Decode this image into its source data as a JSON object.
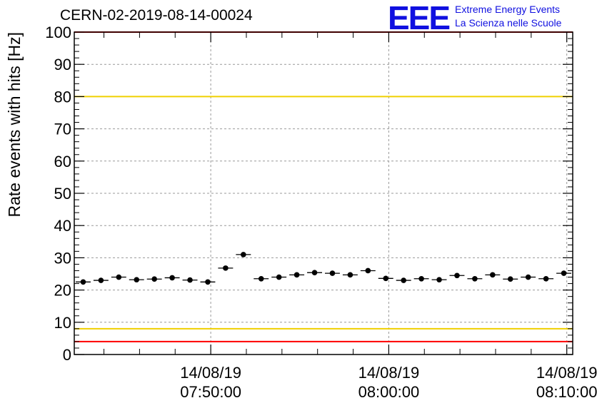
{
  "title": "CERN-02-2019-08-14-00024",
  "logo": {
    "mark": "EEE",
    "line1": "Extreme Energy Events",
    "line2": "La Scienza nelle Scuole",
    "color": "#1010e0"
  },
  "colors": {
    "red_line": "#ff0000",
    "yellow_line": "#f0d000",
    "marker": "#000000",
    "grid": "#999999"
  },
  "chart_data": {
    "type": "scatter",
    "ylabel": "Rate events with hits [Hz]",
    "xlabel": "",
    "ylim": [
      0,
      100
    ],
    "xlim": [
      "07:42:20",
      "08:10:20"
    ],
    "grid": true,
    "y_ticks": [
      0,
      10,
      20,
      30,
      40,
      50,
      60,
      70,
      80,
      90,
      100
    ],
    "x_ticks": [
      {
        "time": "07:50:00",
        "date": "14/08/19",
        "time_label": "07:50:00"
      },
      {
        "time": "08:00:00",
        "date": "14/08/19",
        "time_label": "08:00:00"
      },
      {
        "time": "08:10:00",
        "date": "14/08/19",
        "time_label": "08:10:00"
      }
    ],
    "bin_width_s": 60,
    "series": [
      {
        "x": [
          "07:42:50",
          "07:43:50",
          "07:44:50",
          "07:45:50",
          "07:46:50",
          "07:47:50",
          "07:48:50",
          "07:49:50",
          "07:50:50",
          "07:51:50",
          "07:52:50",
          "07:53:50",
          "07:54:50",
          "07:55:50",
          "07:56:50",
          "07:57:50",
          "07:58:50",
          "07:59:50",
          "08:00:50",
          "08:01:50",
          "08:02:50",
          "08:03:50",
          "08:04:50",
          "08:05:50",
          "08:06:50",
          "08:07:50",
          "08:08:50",
          "08:09:50"
        ],
        "y": [
          22.5,
          23.0,
          24.0,
          23.2,
          23.4,
          23.8,
          23.1,
          22.5,
          26.8,
          31.0,
          23.5,
          24.0,
          24.7,
          25.4,
          25.2,
          24.7,
          26.0,
          23.6,
          23.0,
          23.5,
          23.2,
          24.5,
          23.5,
          24.7,
          23.4,
          24.0,
          23.5,
          25.2
        ]
      }
    ],
    "reference_lines": [
      {
        "y": 100,
        "color": "red"
      },
      {
        "y": 80,
        "color": "yellow"
      },
      {
        "y": 8,
        "color": "yellow"
      },
      {
        "y": 4,
        "color": "red"
      }
    ]
  }
}
